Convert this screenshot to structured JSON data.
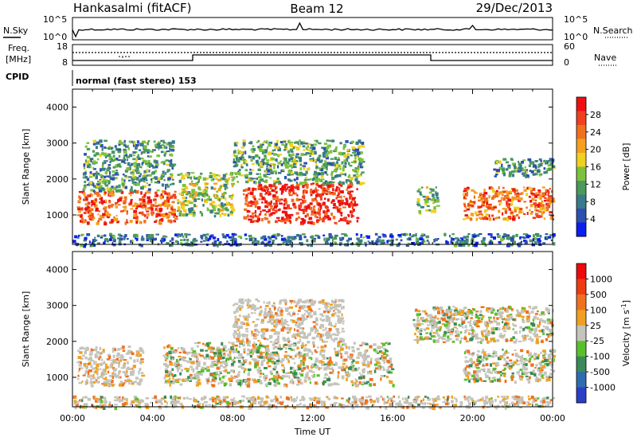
{
  "header": {
    "station": "Hankasalmi (fitACF)",
    "beam": "Beam 12",
    "date": "29/Dec/2013"
  },
  "status_panels": {
    "nsky_label": "N.Sky",
    "nsearch_label": "N.Search",
    "freq_label_1": "Freq.",
    "freq_label_2": "[MHz]",
    "nave_label": "Nave",
    "cpid_label": "CPID",
    "cpid_text": "normal (fast stereo) 153",
    "noise_ticks": [
      "10^5",
      "10^0"
    ],
    "freq_ticks": [
      "18",
      "8"
    ],
    "nave_ticks": [
      "60",
      "0"
    ]
  },
  "chart_data": [
    {
      "type": "heatmap",
      "name": "power",
      "ylabel": "Slant Range [km]",
      "ylim": [
        180,
        4500
      ],
      "yticks": [
        1000,
        2000,
        3000,
        4000
      ],
      "xlim": [
        0,
        24
      ],
      "colorbar": {
        "label": "Power [dB]",
        "range": [
          0,
          32
        ],
        "ticks": [
          "28",
          "24",
          "20",
          "16",
          "12",
          "8",
          "4"
        ],
        "colors": [
          "#0a1ef0",
          "#2e4fb0",
          "#3a7a8a",
          "#4a9a5a",
          "#7cc23c",
          "#f0d020",
          "#f5a020",
          "#f07020",
          "#f04020",
          "#ee1010"
        ]
      },
      "bands": [
        {
          "t0": 0.2,
          "t1": 5.2,
          "r0": 800,
          "r1": 1700,
          "level": 0.85
        },
        {
          "t0": 5.2,
          "t1": 8.0,
          "r0": 1000,
          "r1": 2200,
          "level": 0.45
        },
        {
          "t0": 8.5,
          "t1": 14.2,
          "r0": 800,
          "r1": 1900,
          "level": 0.95
        },
        {
          "t0": 8.0,
          "t1": 14.5,
          "r0": 1900,
          "r1": 3100,
          "level": 0.35
        },
        {
          "t0": 0.5,
          "t1": 5.0,
          "r0": 1700,
          "r1": 3100,
          "level": 0.3
        },
        {
          "t0": 19.5,
          "t1": 24.0,
          "r0": 900,
          "r1": 1800,
          "level": 0.8
        },
        {
          "t0": 21.0,
          "t1": 24.0,
          "r0": 2100,
          "r1": 2600,
          "level": 0.3
        },
        {
          "t0": 17.2,
          "t1": 18.2,
          "r0": 1100,
          "r1": 1800,
          "level": 0.4
        },
        {
          "t0": 0.0,
          "t1": 24.0,
          "r0": 180,
          "r1": 500,
          "level": 0.2
        }
      ]
    },
    {
      "type": "heatmap",
      "name": "velocity",
      "ylabel": "Slant Range [km]",
      "ylim": [
        180,
        4500
      ],
      "yticks": [
        1000,
        2000,
        3000,
        4000
      ],
      "xlim": [
        0,
        24
      ],
      "xlabel": "Time UT",
      "xticks": [
        "00:00",
        "04:00",
        "08:00",
        "12:00",
        "16:00",
        "20:00",
        "00:00"
      ],
      "colorbar": {
        "label": "Velocity [m s^-1]",
        "ticks": [
          "1000",
          "500",
          "100",
          "25",
          "-25",
          "-100",
          "-500",
          "-1000"
        ],
        "colors": [
          "#2a3ec8",
          "#2e6cb0",
          "#3a8a5a",
          "#5ac02a",
          "#c4c4bc",
          "#f0a020",
          "#f07020",
          "#f03a10",
          "#ee0a0a"
        ]
      },
      "bands": [
        {
          "t0": 0.2,
          "t1": 3.5,
          "r0": 800,
          "r1": 1900,
          "level": 0.7
        },
        {
          "t0": 4.5,
          "t1": 16.0,
          "r0": 800,
          "r1": 2000,
          "level": 0.45
        },
        {
          "t0": 8.0,
          "t1": 13.5,
          "r0": 2000,
          "r1": 3200,
          "level": 0.75
        },
        {
          "t0": 19.5,
          "t1": 24.0,
          "r0": 900,
          "r1": 1800,
          "level": 0.45
        },
        {
          "t0": 17.0,
          "t1": 24.0,
          "r0": 2000,
          "r1": 3000,
          "level": 0.45
        },
        {
          "t0": 0.0,
          "t1": 24.0,
          "r0": 180,
          "r1": 500,
          "level": 0.6
        }
      ]
    }
  ]
}
